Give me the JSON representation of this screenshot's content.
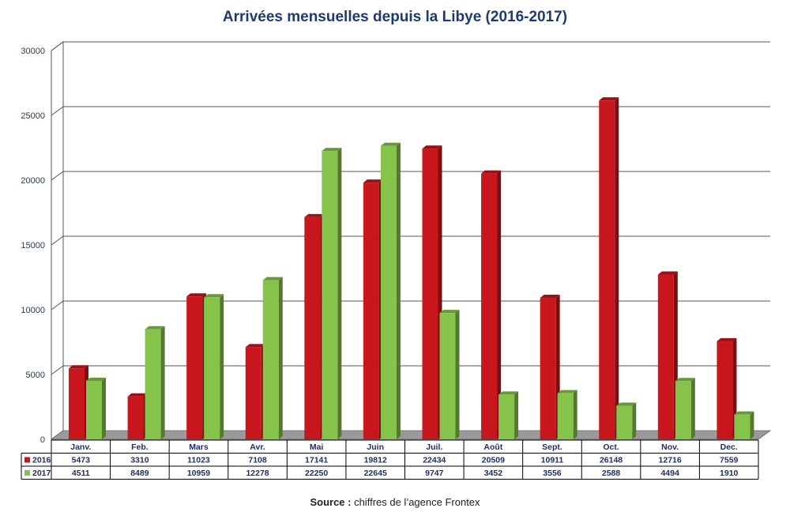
{
  "chart_data": {
    "type": "bar",
    "title": "Arrivées mensuelles depuis la Libye (2016-2017)",
    "categories": [
      "Janv.",
      "Feb.",
      "Mars",
      "Avr.",
      "Mai",
      "Juin",
      "Juil.",
      "Août",
      "Sept.",
      "Oct.",
      "Nov.",
      "Dec."
    ],
    "series": [
      {
        "name": "2016",
        "color": "#c8161d",
        "values": [
          5473,
          3310,
          11023,
          7108,
          17141,
          19812,
          22434,
          20509,
          10911,
          26148,
          12716,
          7559
        ]
      },
      {
        "name": "2017",
        "color": "#86c34a",
        "values": [
          4511,
          8489,
          10959,
          12278,
          22250,
          22645,
          9747,
          3452,
          3556,
          2588,
          4494,
          1910
        ]
      }
    ],
    "ylim": [
      0,
      30000
    ],
    "yticks": [
      "0",
      "5000",
      "10000",
      "15000",
      "20000",
      "25000",
      "30000"
    ],
    "grid": true,
    "legend": "data-table"
  },
  "source": {
    "label": "Source :",
    "text": " chiffres de l’agence Frontex"
  }
}
